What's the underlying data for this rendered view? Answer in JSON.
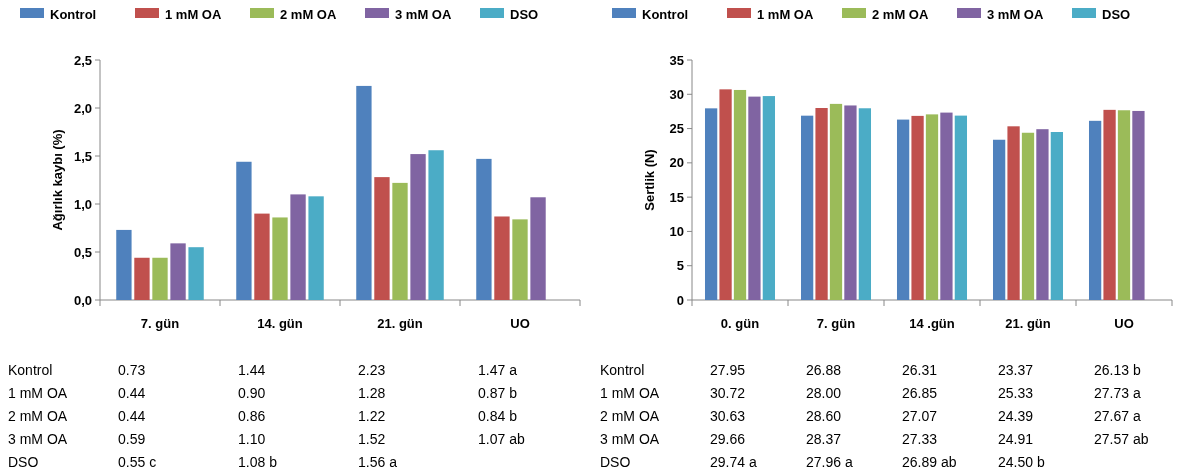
{
  "chart_data": [
    {
      "type": "bar",
      "ylabel": "Ağırlık kaybı (%)",
      "categories": [
        "7. gün",
        "14. gün",
        "21. gün",
        "UO"
      ],
      "ylim": [
        0,
        2.5
      ],
      "yticks": [
        {
          "value": 0,
          "label": "0,0"
        },
        {
          "value": 0.5,
          "label": "0,5"
        },
        {
          "value": 1,
          "label": "1,0"
        },
        {
          "value": 1.5,
          "label": "1,5"
        },
        {
          "value": 2,
          "label": "2,0"
        },
        {
          "value": 2.5,
          "label": "2,5"
        }
      ],
      "grid": false,
      "legend": "top",
      "series": [
        {
          "name": "Kontrol",
          "color": "#4f81bd",
          "values": [
            0.73,
            1.44,
            2.23,
            1.47
          ],
          "value_labels": [
            "0.73",
            "1.44",
            "2.23",
            "1.47 a"
          ]
        },
        {
          "name": "1 mM OA",
          "color": "#c0504d",
          "values": [
            0.44,
            0.9,
            1.28,
            0.87
          ],
          "value_labels": [
            "0.44",
            "0.90",
            "1.28",
            "0.87 b"
          ]
        },
        {
          "name": "2 mM OA",
          "color": "#9bbb59",
          "values": [
            0.44,
            0.86,
            1.22,
            0.84
          ],
          "value_labels": [
            "0.44",
            "0.86",
            "1.22",
            "0.84 b"
          ]
        },
        {
          "name": "3 mM OA",
          "color": "#8064a2",
          "values": [
            0.59,
            1.1,
            1.52,
            1.07
          ],
          "value_labels": [
            "0.59",
            "1.10",
            "1.52",
            "1.07 ab"
          ]
        },
        {
          "name": "DSO",
          "color": "#4bacc6",
          "values": [
            0.55,
            1.08,
            1.56,
            null
          ],
          "value_labels": [
            "0.55 c",
            "1.08 b",
            "1.56 a",
            null
          ]
        }
      ]
    },
    {
      "type": "bar",
      "ylabel": "Sertlik (N)",
      "categories": [
        "0. gün",
        "7. gün",
        "14 .gün",
        "21. gün",
        "UO"
      ],
      "ylim": [
        0,
        35
      ],
      "yticks": [
        0,
        5,
        10,
        15,
        20,
        25,
        30,
        35
      ],
      "grid": false,
      "legend": "top",
      "series": [
        {
          "name": "Kontrol",
          "color": "#4f81bd",
          "values": [
            27.95,
            26.88,
            26.31,
            23.37,
            26.13
          ],
          "value_labels": [
            "27.95",
            "26.88",
            "26.31",
            "23.37",
            "26.13 b"
          ]
        },
        {
          "name": "1 mM OA",
          "color": "#c0504d",
          "values": [
            30.72,
            28.0,
            26.85,
            25.33,
            27.73
          ],
          "value_labels": [
            "30.72",
            "28.00",
            "26.85",
            "25.33",
            "27.73 a"
          ]
        },
        {
          "name": "2 mM OA",
          "color": "#9bbb59",
          "values": [
            30.63,
            28.6,
            27.07,
            24.39,
            27.67
          ],
          "value_labels": [
            "30.63",
            "28.60",
            "27.07",
            "24.39",
            "27.67 a"
          ]
        },
        {
          "name": "3 mM OA",
          "color": "#8064a2",
          "values": [
            29.66,
            28.37,
            27.33,
            24.91,
            27.57
          ],
          "value_labels": [
            "29.66",
            "28.37",
            "27.33",
            "24.91",
            "27.57 ab"
          ]
        },
        {
          "name": "DSO",
          "color": "#4bacc6",
          "values": [
            29.74,
            27.96,
            26.89,
            24.5,
            null
          ],
          "value_labels": [
            "29.74 a",
            "27.96 a",
            "26.89 ab",
            "24.50 b",
            null
          ]
        }
      ]
    }
  ]
}
